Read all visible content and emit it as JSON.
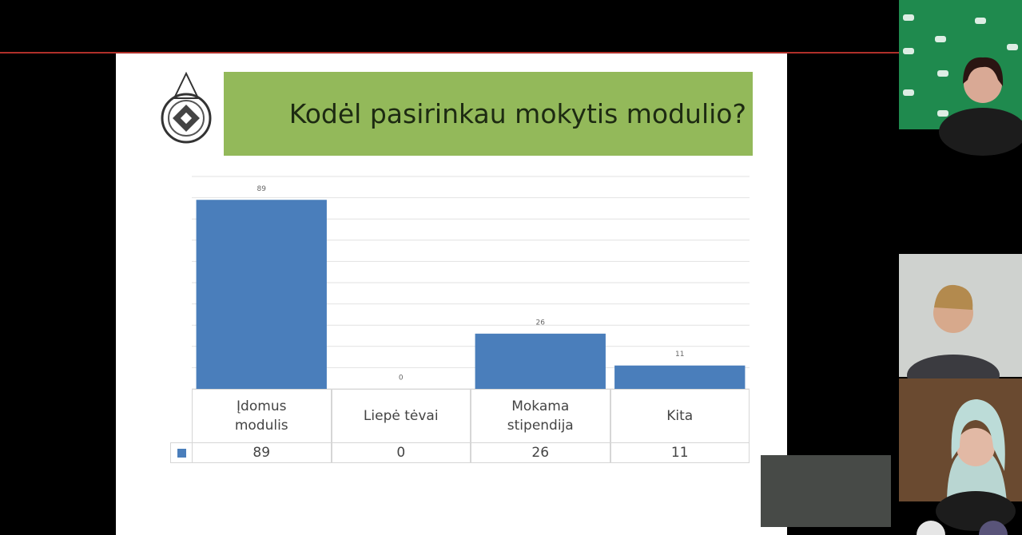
{
  "slide": {
    "title": "Kodėl pasirinkau mokytis modulio?"
  },
  "chart_data": {
    "type": "bar",
    "categories": [
      "Įdomus modulis",
      "Liepė tėvai",
      "Mokama stipendija",
      "Kita"
    ],
    "values": [
      89,
      0,
      26,
      11
    ],
    "color": "#4a7ebb",
    "ylim": [
      0,
      100
    ],
    "yticks": [
      0,
      10,
      20,
      30,
      40,
      50,
      60,
      70,
      80,
      90,
      100
    ],
    "grid": true
  }
}
